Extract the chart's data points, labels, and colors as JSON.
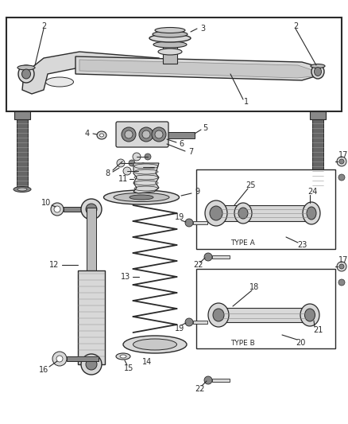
{
  "bg_color": "#ffffff",
  "line_color": "#2a2a2a",
  "gray_dark": "#555555",
  "gray_mid": "#888888",
  "gray_light": "#bbbbbb",
  "gray_fill": "#d8d8d8",
  "white": "#ffffff"
}
